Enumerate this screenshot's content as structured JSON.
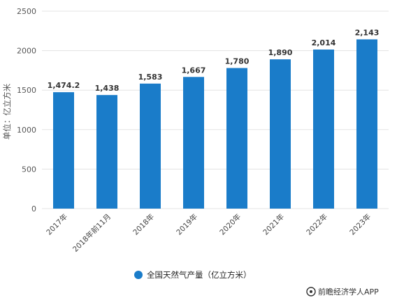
{
  "chart_data": {
    "type": "bar",
    "title": "",
    "ylabel": "单位：亿立方米",
    "xlabel": "",
    "categories": [
      "2017年",
      "2018年前11月",
      "2018年",
      "2019年",
      "2020年",
      "2021年",
      "2022年",
      "2023年"
    ],
    "series": [
      {
        "name": "全国天然气产量（亿立方米）",
        "values": [
          1474.2,
          1438,
          1583,
          1667,
          1780,
          1890,
          2014,
          2143
        ],
        "value_labels": [
          "1,474.2",
          "1,438",
          "1,583",
          "1,667",
          "1,780",
          "1,890",
          "2,014",
          "2,143"
        ],
        "color": "#1a7cc9"
      }
    ],
    "ylim": [
      0,
      2500
    ],
    "yticks": [
      0,
      500,
      1000,
      1500,
      2000,
      2500
    ],
    "grid": true,
    "legend_position": "bottom"
  },
  "footer": {
    "source": "前瞻经济学人APP",
    "icon": "camera-icon"
  }
}
